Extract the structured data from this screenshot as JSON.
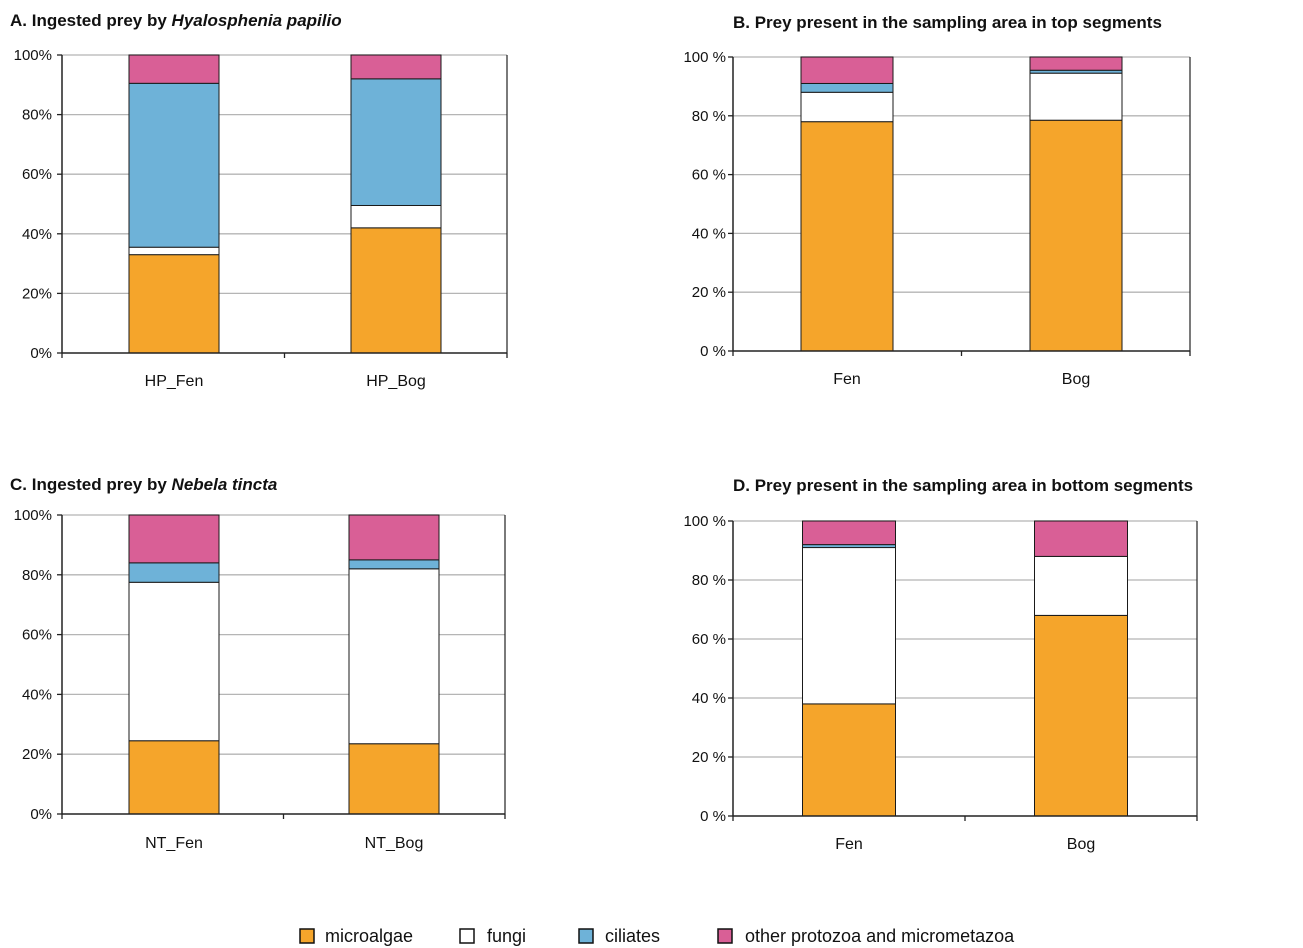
{
  "colors": {
    "microalgae": "#F5A52B",
    "fungi": "#FFFFFF",
    "ciliates": "#6EB2D8",
    "other": "#D95F96",
    "gridline": "#B5B5B5",
    "axis": "#222222"
  },
  "legend": [
    {
      "key": "microalgae",
      "label": "microalgae"
    },
    {
      "key": "fungi",
      "label": "fungi"
    },
    {
      "key": "ciliates",
      "label": "ciliates"
    },
    {
      "key": "other",
      "label": "other protozoa and micrometazoa"
    }
  ],
  "chart_data": [
    {
      "type": "bar",
      "stacked": true,
      "title_prefix": "A. Ingested prey by ",
      "title_italic": "Hyalosphenia papilio",
      "categories": [
        "HP_Fen",
        "HP_Bog"
      ],
      "ytick_labels": [
        "0%",
        "20%",
        "40%",
        "60%",
        "80%",
        "100%"
      ],
      "ylim": [
        0,
        100
      ],
      "grid": true,
      "series": [
        {
          "name": "microalgae",
          "key": "microalgae",
          "values": [
            33,
            42
          ]
        },
        {
          "name": "fungi",
          "key": "fungi",
          "values": [
            2.5,
            7.5
          ]
        },
        {
          "name": "ciliates",
          "key": "ciliates",
          "values": [
            55,
            42.5
          ]
        },
        {
          "name": "other protozoa and micrometazoa",
          "key": "other",
          "values": [
            9.5,
            8
          ]
        }
      ]
    },
    {
      "type": "bar",
      "stacked": true,
      "title_prefix": "B. Prey present in the sampling area in top segments",
      "title_italic": "",
      "categories": [
        "Fen",
        "Bog"
      ],
      "ytick_labels": [
        "0 %",
        "20 %",
        "40 %",
        "60 %",
        "80 %",
        "100 %"
      ],
      "ylim": [
        0,
        100
      ],
      "grid": true,
      "series": [
        {
          "name": "microalgae",
          "key": "microalgae",
          "values": [
            78,
            78.5
          ]
        },
        {
          "name": "fungi",
          "key": "fungi",
          "values": [
            10,
            16
          ]
        },
        {
          "name": "ciliates",
          "key": "ciliates",
          "values": [
            3,
            1
          ]
        },
        {
          "name": "other protozoa and micrometazoa",
          "key": "other",
          "values": [
            9,
            4.5
          ]
        }
      ]
    },
    {
      "type": "bar",
      "stacked": true,
      "title_prefix": "C. Ingested prey by ",
      "title_italic": "Nebela tincta",
      "categories": [
        "NT_Fen",
        "NT_Bog"
      ],
      "ytick_labels": [
        "0%",
        "20%",
        "40%",
        "60%",
        "80%",
        "100%"
      ],
      "ylim": [
        0,
        100
      ],
      "grid": true,
      "series": [
        {
          "name": "microalgae",
          "key": "microalgae",
          "values": [
            24.5,
            23.5
          ]
        },
        {
          "name": "fungi",
          "key": "fungi",
          "values": [
            53,
            58.5
          ]
        },
        {
          "name": "ciliates",
          "key": "ciliates",
          "values": [
            6.5,
            3
          ]
        },
        {
          "name": "other protozoa and micrometazoa",
          "key": "other",
          "values": [
            16,
            15
          ]
        }
      ]
    },
    {
      "type": "bar",
      "stacked": true,
      "title_prefix": "D. Prey present in the sampling area in bottom segments",
      "title_italic": "",
      "categories": [
        "Fen",
        "Bog"
      ],
      "ytick_labels": [
        "0 %",
        "20 %",
        "40 %",
        "60 %",
        "80 %",
        "100 %"
      ],
      "ylim": [
        0,
        100
      ],
      "grid": true,
      "series": [
        {
          "name": "microalgae",
          "key": "microalgae",
          "values": [
            38,
            68
          ]
        },
        {
          "name": "fungi",
          "key": "fungi",
          "values": [
            53,
            20
          ]
        },
        {
          "name": "ciliates",
          "key": "ciliates",
          "values": [
            1,
            0
          ]
        },
        {
          "name": "other protozoa and micrometazoa",
          "key": "other",
          "values": [
            8,
            12
          ]
        }
      ]
    }
  ]
}
